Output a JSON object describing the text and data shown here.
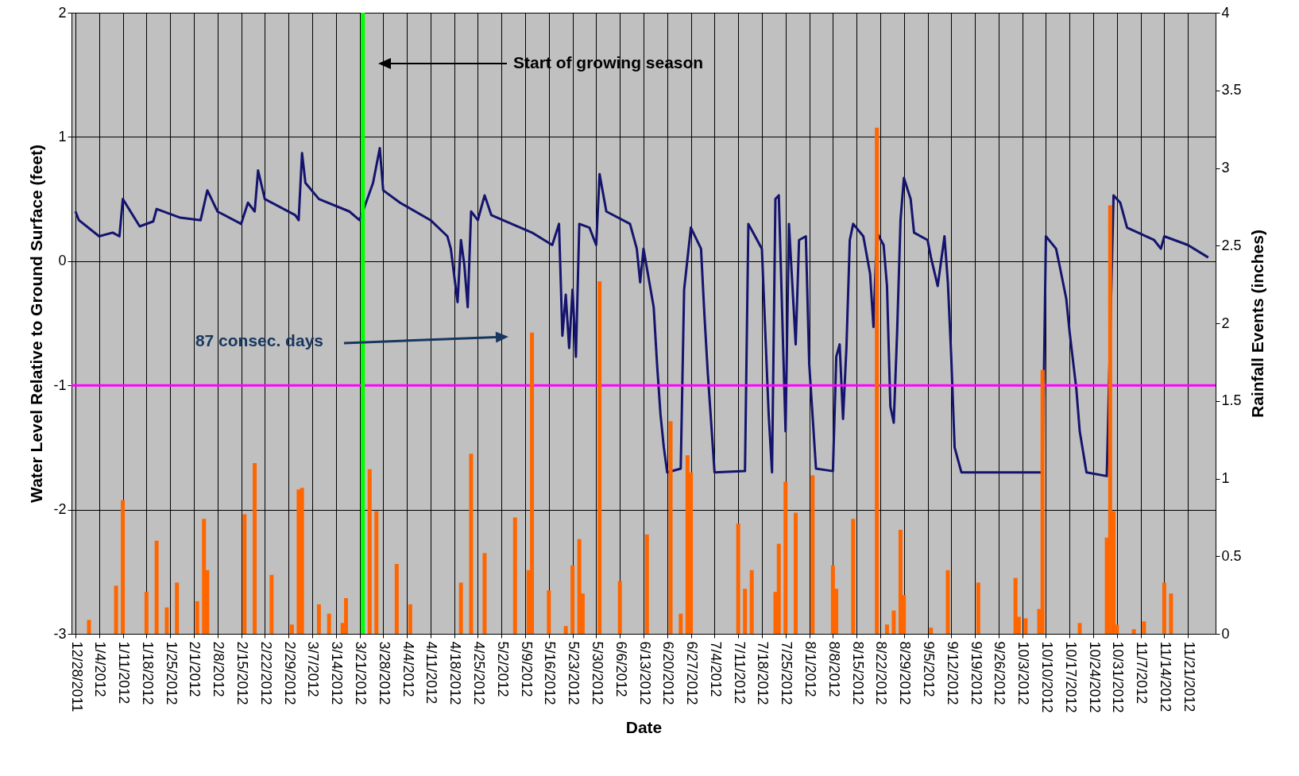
{
  "chart_data": {
    "type": "line",
    "xlabel": "Date",
    "ylabel": "Water Level Relative to Ground Surface (feet)",
    "y2label": "Rainfall Events (inches)",
    "xlim": [
      "2011-12-28",
      "2012-11-28"
    ],
    "xticks": [
      {
        "value": "2011-12-28",
        "label": "12/28/2011"
      },
      {
        "value": "2012-01-04",
        "label": "1/4/2012"
      },
      {
        "value": "2012-01-11",
        "label": "1/11/2012"
      },
      {
        "value": "2012-01-18",
        "label": "1/18/2012"
      },
      {
        "value": "2012-01-25",
        "label": "1/25/2012"
      },
      {
        "value": "2012-02-01",
        "label": "2/1/2012"
      },
      {
        "value": "2012-02-08",
        "label": "2/8/2012"
      },
      {
        "value": "2012-02-15",
        "label": "2/15/2012"
      },
      {
        "value": "2012-02-22",
        "label": "2/22/2012"
      },
      {
        "value": "2012-02-29",
        "label": "2/29/2012"
      },
      {
        "value": "2012-03-07",
        "label": "3/7/2012"
      },
      {
        "value": "2012-03-14",
        "label": "3/14/2012"
      },
      {
        "value": "2012-03-21",
        "label": "3/21/2012"
      },
      {
        "value": "2012-03-28",
        "label": "3/28/2012"
      },
      {
        "value": "2012-04-04",
        "label": "4/4/2012"
      },
      {
        "value": "2012-04-11",
        "label": "4/11/2012"
      },
      {
        "value": "2012-04-18",
        "label": "4/18/2012"
      },
      {
        "value": "2012-04-25",
        "label": "4/25/2012"
      },
      {
        "value": "2012-05-02",
        "label": "5/2/2012"
      },
      {
        "value": "2012-05-09",
        "label": "5/9/2012"
      },
      {
        "value": "2012-05-16",
        "label": "5/16/2012"
      },
      {
        "value": "2012-05-23",
        "label": "5/23/2012"
      },
      {
        "value": "2012-05-30",
        "label": "5/30/2012"
      },
      {
        "value": "2012-06-06",
        "label": "6/6/2012"
      },
      {
        "value": "2012-06-13",
        "label": "6/13/2012"
      },
      {
        "value": "2012-06-20",
        "label": "6/20/2012"
      },
      {
        "value": "2012-06-27",
        "label": "6/27/2012"
      },
      {
        "value": "2012-07-04",
        "label": "7/4/2012"
      },
      {
        "value": "2012-07-11",
        "label": "7/11/2012"
      },
      {
        "value": "2012-07-18",
        "label": "7/18/2012"
      },
      {
        "value": "2012-07-25",
        "label": "7/25/2012"
      },
      {
        "value": "2012-08-01",
        "label": "8/1/2012"
      },
      {
        "value": "2012-08-08",
        "label": "8/8/2012"
      },
      {
        "value": "2012-08-15",
        "label": "8/15/2012"
      },
      {
        "value": "2012-08-22",
        "label": "8/22/2012"
      },
      {
        "value": "2012-08-29",
        "label": "8/29/2012"
      },
      {
        "value": "2012-09-05",
        "label": "9/5/2012"
      },
      {
        "value": "2012-09-12",
        "label": "9/12/2012"
      },
      {
        "value": "2012-09-19",
        "label": "9/19/2012"
      },
      {
        "value": "2012-09-26",
        "label": "9/26/2012"
      },
      {
        "value": "2012-10-03",
        "label": "10/3/2012"
      },
      {
        "value": "2012-10-10",
        "label": "10/10/2012"
      },
      {
        "value": "2012-10-17",
        "label": "10/17/2012"
      },
      {
        "value": "2012-10-24",
        "label": "10/24/2012"
      },
      {
        "value": "2012-10-31",
        "label": "10/31/2012"
      },
      {
        "value": "2012-11-07",
        "label": "11/7/2012"
      },
      {
        "value": "2012-11-14",
        "label": "11/14/2012"
      },
      {
        "value": "2012-11-21",
        "label": "11/21/2012"
      }
    ],
    "ylim": [
      -3,
      2
    ],
    "yticks": [
      -3,
      -2,
      -1,
      0,
      1,
      2
    ],
    "y2lim": [
      0,
      4
    ],
    "y2ticks": [
      0,
      0.5,
      1,
      1.5,
      2,
      2.5,
      3,
      3.5,
      4
    ],
    "grid": true,
    "series": [
      {
        "color": "#14146e",
        "x": [
          "2011-12-28",
          "2011-12-29",
          "2012-01-04",
          "2012-01-08",
          "2012-01-10",
          "2012-01-11",
          "2012-01-16",
          "2012-01-20",
          "2012-01-21",
          "2012-01-28",
          "2012-02-03",
          "2012-02-05",
          "2012-02-08",
          "2012-02-15",
          "2012-02-17",
          "2012-02-19",
          "2012-02-20",
          "2012-02-22",
          "2012-03-02",
          "2012-03-03",
          "2012-03-04",
          "2012-03-05",
          "2012-03-09",
          "2012-03-18",
          "2012-03-21",
          "2012-03-22",
          "2012-03-25",
          "2012-03-27",
          "2012-03-28",
          "2012-04-02",
          "2012-04-11",
          "2012-04-16",
          "2012-04-17",
          "2012-04-19",
          "2012-04-20",
          "2012-04-21",
          "2012-04-22",
          "2012-04-23",
          "2012-04-25",
          "2012-04-27",
          "2012-04-29",
          "2012-05-11",
          "2012-05-17",
          "2012-05-19",
          "2012-05-20",
          "2012-05-21",
          "2012-05-22",
          "2012-05-23",
          "2012-05-24",
          "2012-05-25",
          "2012-05-28",
          "2012-05-30",
          "2012-05-31",
          "2012-06-02",
          "2012-06-09",
          "2012-06-11",
          "2012-06-12",
          "2012-06-13",
          "2012-06-16",
          "2012-06-17",
          "2012-06-18",
          "2012-06-19",
          "2012-06-20",
          "2012-06-24",
          "2012-06-25",
          "2012-06-27",
          "2012-06-30",
          "2012-07-01",
          "2012-07-02",
          "2012-07-04",
          "2012-07-13",
          "2012-07-14",
          "2012-07-16",
          "2012-07-18",
          "2012-07-20",
          "2012-07-21",
          "2012-07-22",
          "2012-07-23",
          "2012-07-25",
          "2012-07-26",
          "2012-07-28",
          "2012-07-29",
          "2012-07-31",
          "2012-08-01",
          "2012-08-03",
          "2012-08-08",
          "2012-08-09",
          "2012-08-10",
          "2012-08-11",
          "2012-08-12",
          "2012-08-13",
          "2012-08-14",
          "2012-08-17",
          "2012-08-19",
          "2012-08-20",
          "2012-08-21",
          "2012-08-23",
          "2012-08-24",
          "2012-08-25",
          "2012-08-26",
          "2012-08-27",
          "2012-08-28",
          "2012-08-29",
          "2012-08-31",
          "2012-09-01",
          "2012-09-05",
          "2012-09-06",
          "2012-09-08",
          "2012-09-10",
          "2012-09-11",
          "2012-09-12",
          "2012-09-13",
          "2012-09-15",
          "2012-10-09",
          "2012-10-10",
          "2012-10-13",
          "2012-10-14",
          "2012-10-16",
          "2012-10-17",
          "2012-10-19",
          "2012-10-20",
          "2012-10-22",
          "2012-10-28",
          "2012-10-30",
          "2012-11-01",
          "2012-11-03",
          "2012-11-11",
          "2012-11-13",
          "2012-11-14",
          "2012-11-21",
          "2012-11-27"
        ],
        "values": [
          0.4,
          0.33,
          0.2,
          0.23,
          0.2,
          0.5,
          0.28,
          0.32,
          0.42,
          0.35,
          0.33,
          0.57,
          0.4,
          0.3,
          0.47,
          0.4,
          0.73,
          0.5,
          0.37,
          0.33,
          0.87,
          0.63,
          0.5,
          0.4,
          0.33,
          0.4,
          0.63,
          0.91,
          0.57,
          0.47,
          0.33,
          0.2,
          0.1,
          -0.33,
          0.17,
          -0.03,
          -0.37,
          0.4,
          0.33,
          0.53,
          0.37,
          0.23,
          0.13,
          0.3,
          -0.6,
          -0.27,
          -0.7,
          -0.23,
          -0.77,
          0.3,
          0.27,
          0.13,
          0.7,
          0.4,
          0.3,
          0.1,
          -0.17,
          0.1,
          -0.37,
          -0.83,
          -1.23,
          -1.5,
          -1.7,
          -1.67,
          -0.23,
          0.27,
          0.1,
          -0.43,
          -0.9,
          -1.7,
          -1.69,
          0.3,
          0.2,
          0.1,
          -1.23,
          -1.7,
          0.5,
          0.53,
          -1.37,
          0.3,
          -0.67,
          0.17,
          0.2,
          -0.83,
          -1.67,
          -1.69,
          -0.77,
          -0.67,
          -1.27,
          -0.7,
          0.17,
          0.3,
          0.2,
          -0.1,
          -0.53,
          0.23,
          0.13,
          -0.2,
          -1.17,
          -1.3,
          -0.57,
          0.33,
          0.67,
          0.5,
          0.23,
          0.17,
          0.03,
          -0.2,
          0.2,
          -0.17,
          -0.77,
          -1.5,
          -1.7,
          -1.7,
          0.2,
          0.1,
          -0.03,
          -0.3,
          -0.57,
          -1.03,
          -1.37,
          -1.7,
          -1.73,
          0.53,
          0.47,
          0.27,
          0.17,
          0.1,
          0.2,
          0.13,
          0.03
        ]
      },
      {
        "type": "bar",
        "axis": "y2",
        "color": "#ff6600",
        "x": [
          "2012-01-01",
          "2012-01-09",
          "2012-01-11",
          "2012-01-18",
          "2012-01-21",
          "2012-01-24",
          "2012-01-27",
          "2012-02-02",
          "2012-02-04",
          "2012-02-05",
          "2012-02-16",
          "2012-02-19",
          "2012-02-24",
          "2012-03-01",
          "2012-03-03",
          "2012-03-04",
          "2012-03-09",
          "2012-03-12",
          "2012-03-16",
          "2012-03-17",
          "2012-03-24",
          "2012-03-26",
          "2012-04-01",
          "2012-04-05",
          "2012-04-20",
          "2012-04-23",
          "2012-04-27",
          "2012-05-06",
          "2012-05-10",
          "2012-05-11",
          "2012-05-16",
          "2012-05-21",
          "2012-05-23",
          "2012-05-25",
          "2012-05-26",
          "2012-05-31",
          "2012-06-06",
          "2012-06-14",
          "2012-06-21",
          "2012-06-24",
          "2012-06-26",
          "2012-06-27",
          "2012-07-11",
          "2012-07-13",
          "2012-07-15",
          "2012-07-22",
          "2012-07-23",
          "2012-07-25",
          "2012-07-28",
          "2012-08-02",
          "2012-08-08",
          "2012-08-09",
          "2012-08-14",
          "2012-08-21",
          "2012-08-24",
          "2012-08-26",
          "2012-08-28",
          "2012-08-29",
          "2012-09-06",
          "2012-09-11",
          "2012-09-20",
          "2012-10-01",
          "2012-10-02",
          "2012-10-04",
          "2012-10-08",
          "2012-10-09",
          "2012-10-20",
          "2012-10-28",
          "2012-10-29",
          "2012-10-30",
          "2012-10-31",
          "2012-11-05",
          "2012-11-08",
          "2012-11-14",
          "2012-11-16"
        ],
        "values": [
          0.09,
          0.31,
          0.86,
          0.27,
          0.6,
          0.17,
          0.33,
          0.21,
          0.74,
          0.41,
          0.77,
          1.1,
          0.38,
          0.06,
          0.93,
          0.94,
          0.19,
          0.13,
          0.07,
          0.23,
          1.06,
          0.79,
          0.45,
          0.19,
          0.33,
          1.16,
          0.52,
          0.75,
          0.41,
          1.94,
          0.28,
          0.05,
          0.44,
          0.61,
          0.26,
          2.27,
          0.34,
          0.64,
          1.37,
          0.13,
          1.15,
          1.04,
          0.71,
          0.29,
          0.41,
          0.27,
          0.58,
          0.98,
          0.78,
          1.02,
          0.44,
          0.29,
          0.74,
          3.26,
          0.06,
          0.15,
          0.67,
          0.25,
          0.04,
          0.41,
          0.33,
          0.36,
          0.11,
          0.1,
          0.16,
          1.7,
          0.07,
          0.62,
          2.76,
          0.79,
          0.06,
          0.03,
          0.08,
          0.33,
          0.26
        ]
      }
    ],
    "ref_lines": [
      {
        "axis": "y",
        "value": -1,
        "color": "#ff00ff"
      },
      {
        "axis": "x",
        "value": "2012-03-22",
        "color": "#00ff00"
      }
    ],
    "annotations": [
      "Start of growing season",
      "87 consec. days"
    ]
  }
}
